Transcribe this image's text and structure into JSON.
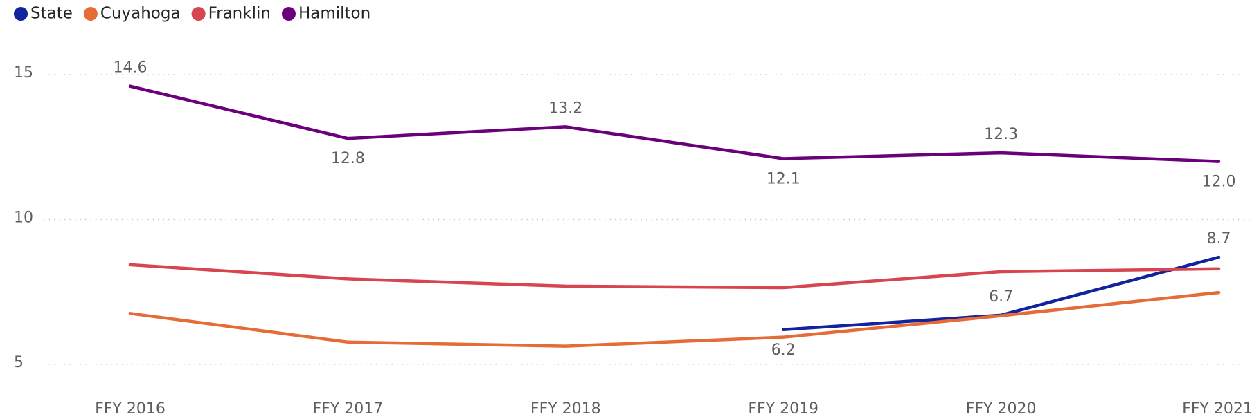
{
  "chart_data": {
    "type": "line",
    "categories": [
      "FFY 2016",
      "FFY 2017",
      "FFY 2018",
      "FFY 2019",
      "FFY 2020",
      "FFY 2021"
    ],
    "series": [
      {
        "name": "State",
        "color": "#12239e",
        "values": [
          null,
          null,
          null,
          6.2,
          6.7,
          8.7
        ],
        "value_labels": [
          null,
          null,
          null,
          "6.2",
          "6.7",
          "8.7"
        ]
      },
      {
        "name": "Cuyahoga",
        "color": "#e66c37",
        "values": [
          6.76,
          5.77,
          5.63,
          5.94,
          6.68,
          7.48
        ]
      },
      {
        "name": "Franklin",
        "color": "#d64550",
        "values": [
          8.44,
          7.95,
          7.7,
          7.65,
          8.2,
          8.3
        ]
      },
      {
        "name": "Hamilton",
        "color": "#6b007b",
        "values": [
          14.6,
          12.8,
          13.2,
          12.1,
          12.3,
          12.0
        ],
        "value_labels": [
          "14.6",
          "12.8",
          "13.2",
          "12.1",
          "12.3",
          "12.0"
        ]
      }
    ],
    "ylim": [
      4,
      16
    ],
    "yticks": [
      5,
      10,
      15
    ],
    "grid": true,
    "legend": "top-left"
  }
}
